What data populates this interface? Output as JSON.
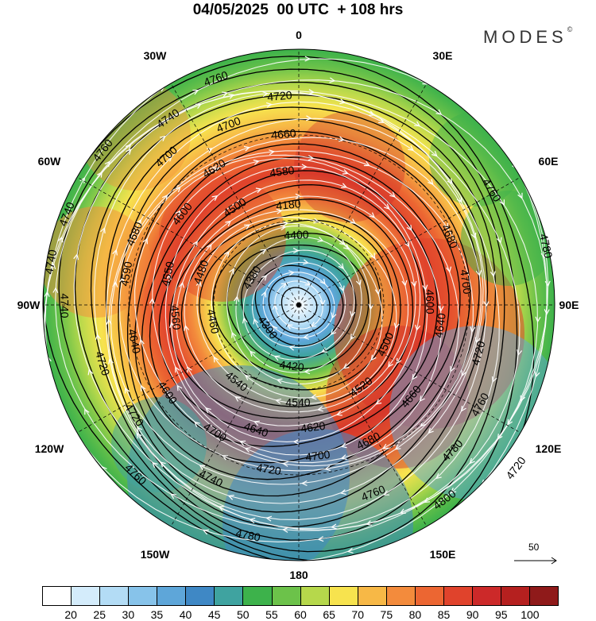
{
  "title": "04/05/2025  00 UTC  + 108 hrs",
  "brand": "MODES",
  "brand_mark": "©",
  "lon_labels": [
    {
      "id": "lon-0",
      "text": "0"
    },
    {
      "id": "lon-30e",
      "text": "30E"
    },
    {
      "id": "lon-60e",
      "text": "60E"
    },
    {
      "id": "lon-90e",
      "text": "90E"
    },
    {
      "id": "lon-120e",
      "text": "120E"
    },
    {
      "id": "lon-150e",
      "text": "150E"
    },
    {
      "id": "lon-180",
      "text": "180"
    },
    {
      "id": "lon-150w",
      "text": "150W"
    },
    {
      "id": "lon-120w",
      "text": "120W"
    },
    {
      "id": "lon-90w",
      "text": "90W"
    },
    {
      "id": "lon-60w",
      "text": "60W"
    },
    {
      "id": "lon-30w",
      "text": "30W"
    }
  ],
  "vector_reference": "50",
  "colorbar": {
    "colors": [
      "#ffffff",
      "#d4ecfb",
      "#b3dcf5",
      "#87c3ea",
      "#5ea6d9",
      "#3f88c5",
      "#3fa3a0",
      "#3db24b",
      "#6cc24a",
      "#b6d84b",
      "#f7e34e",
      "#f7b846",
      "#f38b3c",
      "#ec6632",
      "#e0432c",
      "#cc2929",
      "#b5201f",
      "#8f1a1a"
    ],
    "labels": [
      "20",
      "25",
      "30",
      "35",
      "40",
      "45",
      "50",
      "55",
      "60",
      "65",
      "70",
      "75",
      "80",
      "85",
      "90",
      "95",
      "100"
    ]
  },
  "contour_labels": [
    {
      "text": "4760"
    },
    {
      "text": "4720"
    },
    {
      "text": "4740"
    },
    {
      "text": "4700"
    },
    {
      "text": "4660"
    },
    {
      "text": "4760"
    },
    {
      "text": "4700"
    },
    {
      "text": "4620"
    },
    {
      "text": "4580"
    },
    {
      "text": "4740"
    },
    {
      "text": "4680"
    },
    {
      "text": "4600"
    },
    {
      "text": "4500"
    },
    {
      "text": "4180"
    },
    {
      "text": "4400"
    },
    {
      "text": "4680"
    },
    {
      "text": "4760"
    },
    {
      "text": "4780"
    },
    {
      "text": "4740"
    },
    {
      "text": "4590"
    },
    {
      "text": "4550"
    },
    {
      "text": "4480"
    },
    {
      "text": "4380"
    },
    {
      "text": "4700"
    },
    {
      "text": "4600"
    },
    {
      "text": "4740"
    },
    {
      "text": "4640"
    },
    {
      "text": "4560"
    },
    {
      "text": "4460"
    },
    {
      "text": "4300"
    },
    {
      "text": "4720"
    },
    {
      "text": "4500"
    },
    {
      "text": "4640"
    },
    {
      "text": "4720"
    },
    {
      "text": "4420"
    },
    {
      "text": "4720"
    },
    {
      "text": "4600"
    },
    {
      "text": "4540"
    },
    {
      "text": "4520"
    },
    {
      "text": "4660"
    },
    {
      "text": "4540"
    },
    {
      "text": "4760"
    },
    {
      "text": "4720"
    },
    {
      "text": "4700"
    },
    {
      "text": "4640"
    },
    {
      "text": "4620"
    },
    {
      "text": "4680"
    },
    {
      "text": "4780"
    },
    {
      "text": "4760"
    },
    {
      "text": "4740"
    },
    {
      "text": "4700"
    },
    {
      "text": "4720"
    },
    {
      "text": "4760"
    },
    {
      "text": "4800"
    },
    {
      "text": "4780"
    }
  ]
}
